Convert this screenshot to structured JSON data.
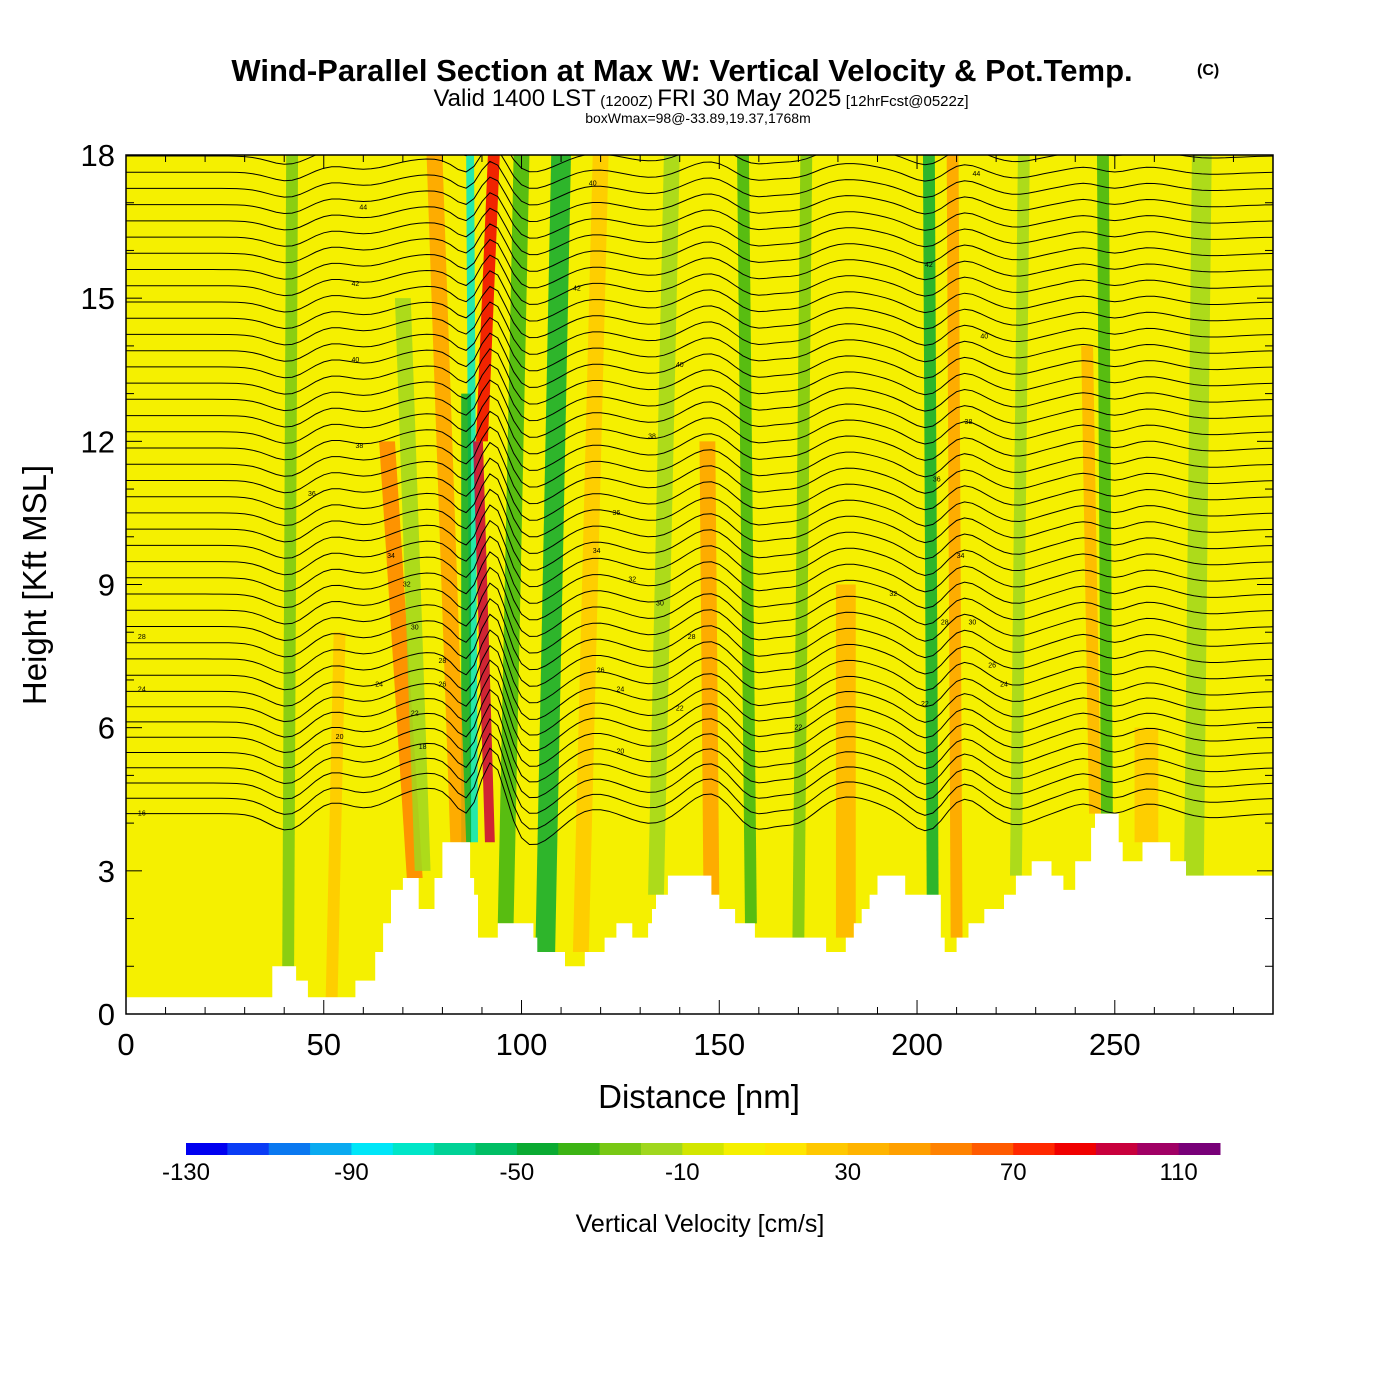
{
  "title": {
    "main": "Wind-Parallel Section at Max W: Vertical Velocity & Pot.Temp.",
    "copyright": "(C)",
    "valid_prefix": "Valid 1400 LST",
    "valid_utc": "(1200Z)",
    "valid_date": "FRI 30 May 2025",
    "forecast": "[12hrFcst@0522z]",
    "box_info": "boxWmax=98@-33.89,19.37,1768m"
  },
  "chart_data": {
    "type": "heatmap",
    "xlabel": "Distance [nm]",
    "ylabel": "Height [Kft MSL]",
    "xlim": [
      0,
      290
    ],
    "ylim": [
      0,
      18
    ],
    "x_ticks": [
      "0",
      "50",
      "100",
      "150",
      "200",
      "250"
    ],
    "y_ticks": [
      "0",
      "3",
      "6",
      "9",
      "12",
      "15",
      "18"
    ],
    "colorbar": {
      "title": "Vertical Velocity [cm/s]",
      "levels": [
        -130,
        -120,
        -110,
        -100,
        -90,
        -80,
        -70,
        -60,
        -50,
        -40,
        -30,
        -20,
        -10,
        0,
        10,
        20,
        30,
        40,
        50,
        60,
        70,
        80,
        90,
        100,
        110,
        120
      ],
      "colors": [
        "#0000f0",
        "#0a3cf5",
        "#0a78f0",
        "#0aaaf0",
        "#00e6f8",
        "#00e6c8",
        "#00d296",
        "#00be64",
        "#0aaa32",
        "#3cb414",
        "#78c814",
        "#a0d71e",
        "#d2e600",
        "#f5f000",
        "#ffe600",
        "#ffc800",
        "#ffb400",
        "#ffa000",
        "#ff8200",
        "#ff5a00",
        "#ff2800",
        "#f00000",
        "#c8003c",
        "#a00064",
        "#780078"
      ],
      "tick_labels": [
        "-130",
        "-90",
        "-50",
        "-10",
        "30",
        "70",
        "110"
      ]
    },
    "terrain_kft": [
      [
        0,
        0.35
      ],
      [
        36,
        0.35
      ],
      [
        37,
        1.0
      ],
      [
        41,
        1.0
      ],
      [
        43,
        0.7
      ],
      [
        46,
        0.35
      ],
      [
        57,
        0.35
      ],
      [
        58,
        0.7
      ],
      [
        62,
        0.7
      ],
      [
        63,
        1.3
      ],
      [
        64,
        1.3
      ],
      [
        65,
        1.9
      ],
      [
        66,
        1.9
      ],
      [
        67,
        2.6
      ],
      [
        69,
        2.6
      ],
      [
        70,
        2.85
      ],
      [
        73,
        2.85
      ],
      [
        74,
        2.2
      ],
      [
        77,
        2.2
      ],
      [
        78,
        2.85
      ],
      [
        79,
        2.85
      ],
      [
        80,
        3.6
      ],
      [
        86,
        3.6
      ],
      [
        87,
        2.85
      ],
      [
        88,
        2.5
      ],
      [
        89,
        1.6
      ],
      [
        93,
        1.6
      ],
      [
        94,
        1.9
      ],
      [
        102,
        1.9
      ],
      [
        103,
        1.6
      ],
      [
        104,
        1.3
      ],
      [
        110,
        1.3
      ],
      [
        111,
        1.0
      ],
      [
        115,
        1.0
      ],
      [
        116,
        1.3
      ],
      [
        120,
        1.3
      ],
      [
        121,
        1.6
      ],
      [
        123,
        1.6
      ],
      [
        124,
        1.9
      ],
      [
        127,
        1.9
      ],
      [
        128,
        1.6
      ],
      [
        131,
        1.6
      ],
      [
        132,
        1.9
      ],
      [
        133,
        2.2
      ],
      [
        134,
        2.5
      ],
      [
        136,
        2.5
      ],
      [
        137,
        2.9
      ],
      [
        144,
        2.9
      ],
      [
        148,
        2.5
      ],
      [
        150,
        2.2
      ],
      [
        153,
        2.2
      ],
      [
        154,
        1.9
      ],
      [
        158,
        1.9
      ],
      [
        159,
        1.6
      ],
      [
        176,
        1.6
      ],
      [
        177,
        1.3
      ],
      [
        181,
        1.3
      ],
      [
        182,
        1.6
      ],
      [
        184,
        1.9
      ],
      [
        186,
        2.2
      ],
      [
        188,
        2.5
      ],
      [
        190,
        2.9
      ],
      [
        195,
        2.9
      ],
      [
        197,
        2.5
      ],
      [
        205,
        2.5
      ],
      [
        206,
        1.6
      ],
      [
        207,
        1.3
      ],
      [
        209,
        1.3
      ],
      [
        210,
        1.6
      ],
      [
        212,
        1.6
      ],
      [
        213,
        1.9
      ],
      [
        216,
        1.9
      ],
      [
        217,
        2.2
      ],
      [
        221,
        2.2
      ],
      [
        222,
        2.5
      ],
      [
        224,
        2.5
      ],
      [
        225,
        2.9
      ],
      [
        228,
        2.9
      ],
      [
        229,
        3.2
      ],
      [
        233,
        3.2
      ],
      [
        234,
        2.9
      ],
      [
        236,
        2.9
      ],
      [
        237,
        2.6
      ],
      [
        239,
        2.6
      ],
      [
        240,
        3.2
      ],
      [
        243,
        3.2
      ],
      [
        244,
        3.9
      ],
      [
        245,
        4.2
      ],
      [
        250,
        4.2
      ],
      [
        251,
        3.6
      ],
      [
        252,
        3.2
      ],
      [
        256,
        3.2
      ],
      [
        257,
        3.6
      ],
      [
        263,
        3.6
      ],
      [
        264,
        3.2
      ],
      [
        267,
        3.2
      ],
      [
        268,
        2.9
      ],
      [
        290,
        2.9
      ]
    ],
    "w_features": [
      {
        "x": 88,
        "x_top": 87,
        "w_nm": 2.0,
        "slant": -0.5,
        "y0": 3.6,
        "y1": 18,
        "w": -80
      },
      {
        "x": 86,
        "x_top": 86,
        "w_nm": 2.5,
        "slant": -0.5,
        "y0": 3.6,
        "y1": 13,
        "w": -50
      },
      {
        "x": 92,
        "x_top": 89,
        "w_nm": 2.5,
        "slant": 0,
        "y0": 3.6,
        "y1": 12,
        "w": 90
      },
      {
        "x": 90,
        "x_top": 93,
        "w_nm": 3.0,
        "slant": 0,
        "y0": 12,
        "y1": 18,
        "w": 80
      },
      {
        "x": 96,
        "x_top": 100,
        "w_nm": 4.0,
        "slant": 0,
        "y0": 1.9,
        "y1": 18,
        "w": -40
      },
      {
        "x": 84,
        "x_top": 78,
        "w_nm": 4.0,
        "slant": 0,
        "y0": 3.6,
        "y1": 18,
        "w": 45
      },
      {
        "x": 73,
        "x_top": 66,
        "w_nm": 4.0,
        "slant": 0,
        "y0": 2.85,
        "y1": 12,
        "w": 50
      },
      {
        "x": 75,
        "x_top": 70,
        "w_nm": 4.0,
        "slant": 0,
        "y0": 3.0,
        "y1": 15,
        "w": -20
      },
      {
        "x": 41,
        "x_top": 42,
        "w_nm": 3.0,
        "slant": 0,
        "y0": 1.0,
        "y1": 18,
        "w": -30
      },
      {
        "x": 52,
        "x_top": 54,
        "w_nm": 3.0,
        "slant": 0,
        "y0": 0.35,
        "y1": 8,
        "w": 20
      },
      {
        "x": 106,
        "x_top": 110,
        "w_nm": 5.0,
        "slant": 0,
        "y0": 1.3,
        "y1": 18,
        "w": -45
      },
      {
        "x": 115,
        "x_top": 120,
        "w_nm": 4.0,
        "slant": 0,
        "y0": 1.3,
        "y1": 18,
        "w": 25
      },
      {
        "x": 134,
        "x_top": 138,
        "w_nm": 4.0,
        "slant": 0,
        "y0": 2.5,
        "y1": 18,
        "w": -20
      },
      {
        "x": 148,
        "x_top": 147,
        "w_nm": 4.0,
        "slant": 0,
        "y0": 2.5,
        "y1": 12,
        "w": 40
      },
      {
        "x": 158,
        "x_top": 156,
        "w_nm": 3.0,
        "slant": 0,
        "y0": 1.9,
        "y1": 18,
        "w": -35
      },
      {
        "x": 170,
        "x_top": 172,
        "w_nm": 3.0,
        "slant": 0,
        "y0": 1.6,
        "y1": 18,
        "w": -25
      },
      {
        "x": 182,
        "x_top": 182,
        "w_nm": 5.0,
        "slant": 0,
        "y0": 1.6,
        "y1": 9,
        "w": 30
      },
      {
        "x": 204,
        "x_top": 203,
        "w_nm": 3.0,
        "slant": 0,
        "y0": 1.6,
        "y1": 18,
        "w": -45
      },
      {
        "x": 210,
        "x_top": 209,
        "w_nm": 3.0,
        "slant": 0,
        "y0": 1.6,
        "y1": 18,
        "w": 40
      },
      {
        "x": 225,
        "x_top": 227,
        "w_nm": 3.0,
        "slant": 0,
        "y0": 2.9,
        "y1": 18,
        "w": -20
      },
      {
        "x": 248,
        "x_top": 247,
        "w_nm": 3.0,
        "slant": 0,
        "y0": 4.2,
        "y1": 18,
        "w": -40
      },
      {
        "x": 245,
        "x_top": 243,
        "w_nm": 3.0,
        "slant": 0,
        "y0": 4.2,
        "y1": 14,
        "w": 35
      },
      {
        "x": 258,
        "x_top": 258,
        "w_nm": 6.0,
        "slant": 0,
        "y0": 3.6,
        "y1": 6,
        "w": 25
      },
      {
        "x": 270,
        "x_top": 272,
        "w_nm": 5.0,
        "slant": 0,
        "y0": 2.9,
        "y1": 18,
        "w": -15
      }
    ],
    "theta_labels": [
      {
        "text": "44",
        "x": 60,
        "y": 16.9
      },
      {
        "text": "42",
        "x": 58,
        "y": 15.3
      },
      {
        "text": "40",
        "x": 58,
        "y": 13.7
      },
      {
        "text": "38",
        "x": 59,
        "y": 11.9
      },
      {
        "text": "36",
        "x": 47,
        "y": 10.9
      },
      {
        "text": "34",
        "x": 67,
        "y": 9.6
      },
      {
        "text": "32",
        "x": 71,
        "y": 9.0
      },
      {
        "text": "30",
        "x": 73,
        "y": 8.1
      },
      {
        "text": "28",
        "x": 80,
        "y": 7.4
      },
      {
        "text": "26",
        "x": 80,
        "y": 6.9
      },
      {
        "text": "24",
        "x": 64,
        "y": 6.9
      },
      {
        "text": "22",
        "x": 73,
        "y": 6.3
      },
      {
        "text": "20",
        "x": 54,
        "y": 5.8
      },
      {
        "text": "18",
        "x": 75,
        "y": 5.6
      },
      {
        "text": "28",
        "x": 4,
        "y": 7.9
      },
      {
        "text": "24",
        "x": 4,
        "y": 6.8
      },
      {
        "text": "16",
        "x": 4,
        "y": 4.2
      },
      {
        "text": "40",
        "x": 118,
        "y": 17.4
      },
      {
        "text": "42",
        "x": 114,
        "y": 15.2
      },
      {
        "text": "40",
        "x": 140,
        "y": 13.6
      },
      {
        "text": "38",
        "x": 133,
        "y": 12.1
      },
      {
        "text": "36",
        "x": 124,
        "y": 10.5
      },
      {
        "text": "34",
        "x": 119,
        "y": 9.7
      },
      {
        "text": "32",
        "x": 128,
        "y": 9.1
      },
      {
        "text": "30",
        "x": 135,
        "y": 8.6
      },
      {
        "text": "28",
        "x": 143,
        "y": 7.9
      },
      {
        "text": "26",
        "x": 120,
        "y": 7.2
      },
      {
        "text": "24",
        "x": 125,
        "y": 6.8
      },
      {
        "text": "22",
        "x": 140,
        "y": 6.4
      },
      {
        "text": "20",
        "x": 125,
        "y": 5.5
      },
      {
        "text": "22",
        "x": 170,
        "y": 6.0
      },
      {
        "text": "44",
        "x": 215,
        "y": 17.6
      },
      {
        "text": "42",
        "x": 203,
        "y": 15.7
      },
      {
        "text": "40",
        "x": 217,
        "y": 14.2
      },
      {
        "text": "38",
        "x": 213,
        "y": 12.4
      },
      {
        "text": "36",
        "x": 205,
        "y": 11.2
      },
      {
        "text": "34",
        "x": 211,
        "y": 9.6
      },
      {
        "text": "32",
        "x": 194,
        "y": 8.8
      },
      {
        "text": "30",
        "x": 214,
        "y": 8.2
      },
      {
        "text": "28",
        "x": 207,
        "y": 8.2
      },
      {
        "text": "26",
        "x": 219,
        "y": 7.3
      },
      {
        "text": "24",
        "x": 222,
        "y": 6.9
      },
      {
        "text": "22",
        "x": 202,
        "y": 6.5
      }
    ]
  }
}
